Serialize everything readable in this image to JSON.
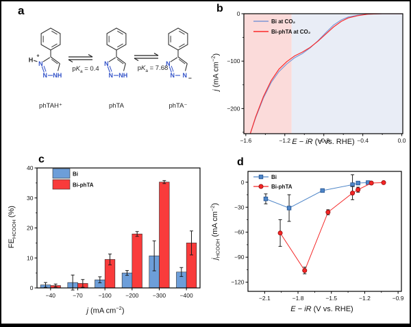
{
  "figure": {
    "background": "#ffffff",
    "border_color": "#000000"
  },
  "panel_a": {
    "label": "a",
    "molecules": [
      {
        "name": "phTAH⁺",
        "h_label": "H",
        "charge": "+",
        "n_left": "N",
        "n_bottom_left": "N",
        "n_bottom_right": "NH"
      },
      {
        "name": "phTA",
        "n_left": "N",
        "n_bottom_left": "N",
        "n_bottom_right": "NH"
      },
      {
        "name": "phTA⁻",
        "charge": "−",
        "n_left": "N",
        "n_bottom_left": "N",
        "n_bottom_right": "N"
      }
    ],
    "equilibria": [
      {
        "pka_parts": [
          {
            "t": "p"
          },
          {
            "t": "K",
            "i": true
          },
          {
            "t": "a",
            "sub": true
          },
          {
            "t": " = 0.4"
          }
        ]
      },
      {
        "pka_parts": [
          {
            "t": "p"
          },
          {
            "t": "K",
            "i": true
          },
          {
            "t": "a",
            "sub": true
          },
          {
            "t": " = 7.68"
          }
        ]
      }
    ],
    "atom_color": "#3050c8"
  },
  "panel_b": {
    "label": "b"
  },
  "panel_c": {
    "label": "c"
  },
  "panel_d": {
    "label": "d"
  },
  "chart_data": [
    {
      "id": "b",
      "type": "line",
      "xlabel": "E − iR (V vs. RHE)",
      "ylabel": "j (mA cm−2)",
      "xlabel_parts": [
        {
          "t": "E",
          "i": true
        },
        {
          "t": " − "
        },
        {
          "t": "iR",
          "i": true
        },
        {
          "t": " (V vs. RHE)"
        }
      ],
      "ylabel_parts": [
        {
          "t": "j",
          "i": true
        },
        {
          "t": " (mA cm"
        },
        {
          "t": "−2",
          "sup": true
        },
        {
          "t": ")"
        }
      ],
      "xlim": [
        -1.62,
        0.01
      ],
      "ylim": [
        -253,
        0
      ],
      "xticks": [
        -1.6,
        -1.2,
        -0.8,
        -0.4,
        0.0
      ],
      "xtick_labels": [
        "−1.6",
        "−1.2",
        "−0.8",
        "−0.4",
        "0.0"
      ],
      "yticks": [
        0,
        -100,
        -200
      ],
      "ytick_labels": [
        "0",
        "−100",
        "−200"
      ],
      "regions": [
        {
          "x0": -1.62,
          "x1": -1.13,
          "color": "#fbdbda"
        },
        {
          "x0": -1.13,
          "x1": 0.01,
          "color": "#e9edf6"
        }
      ],
      "legend_position": "top-left",
      "series": [
        {
          "name": "Bi at CO₂",
          "color": "#7c96d4",
          "x": [
            0.0,
            -0.2,
            -0.35,
            -0.45,
            -0.55,
            -0.62,
            -0.7,
            -0.78,
            -0.86,
            -0.94,
            -1.02,
            -1.1,
            -1.18,
            -1.26,
            -1.34,
            -1.42,
            -1.5,
            -1.56
          ],
          "y": [
            0,
            0,
            -1,
            -3,
            -7,
            -13,
            -24,
            -40,
            -57,
            -72,
            -84,
            -93,
            -106,
            -122,
            -145,
            -178,
            -220,
            -256
          ]
        },
        {
          "name": "Bi-phTA at CO₂",
          "color": "#fb2a2a",
          "x": [
            0.0,
            -0.2,
            -0.35,
            -0.45,
            -0.55,
            -0.62,
            -0.7,
            -0.78,
            -0.86,
            -0.94,
            -1.02,
            -1.1,
            -1.18,
            -1.26,
            -1.34,
            -1.42,
            -1.5,
            -1.56
          ],
          "y": [
            0,
            0,
            -1,
            -4,
            -9,
            -16,
            -28,
            -43,
            -58,
            -71,
            -81,
            -89,
            -101,
            -117,
            -141,
            -175,
            -218,
            -257
          ]
        }
      ]
    },
    {
      "id": "c",
      "type": "bar",
      "xlabel": "j (mA cm−2)",
      "ylabel": "FEHCOOH (%)",
      "xlabel_parts": [
        {
          "t": "j",
          "i": true
        },
        {
          "t": " (mA cm"
        },
        {
          "t": "−2",
          "sup": true
        },
        {
          "t": ")"
        }
      ],
      "ylabel_parts": [
        {
          "t": "FE"
        },
        {
          "t": "HCOOH",
          "sub": true
        },
        {
          "t": " (%)"
        }
      ],
      "categories": [
        "−40",
        "−70",
        "−100",
        "−200",
        "−300",
        "−400"
      ],
      "ylim": [
        0,
        40
      ],
      "yticks": [
        0,
        10,
        20,
        30,
        40
      ],
      "ytick_labels": [
        "0",
        "10",
        "20",
        "30",
        "40"
      ],
      "legend_position": "top-left",
      "series": [
        {
          "name": "Bi",
          "color": "#6d9ed9",
          "edge": "#2b2b2b",
          "values": [
            1.0,
            1.8,
            2.7,
            5.0,
            10.7,
            5.3
          ],
          "errors": [
            0.8,
            2.5,
            1.0,
            0.8,
            5.0,
            1.5
          ]
        },
        {
          "name": "Bi-phTA",
          "color": "#f93b3b",
          "edge": "#2b2b2b",
          "values": [
            0.8,
            1.5,
            9.5,
            18.0,
            35.3,
            15.0
          ],
          "errors": [
            0.5,
            1.3,
            1.8,
            0.8,
            0.5,
            4.0
          ]
        }
      ]
    },
    {
      "id": "d",
      "type": "scatter-line",
      "xlabel": "E − iR (V vs. RHE)",
      "ylabel": "jHCOOH (mA cm−2)",
      "xlabel_parts": [
        {
          "t": "E",
          "i": true
        },
        {
          "t": " − "
        },
        {
          "t": "iR",
          "i": true
        },
        {
          "t": " (V vs. RHE)"
        }
      ],
      "ylabel_parts": [
        {
          "t": "j",
          "i": true
        },
        {
          "t": "HCOOH",
          "sub": true
        },
        {
          "t": " (mA cm"
        },
        {
          "t": "−2",
          "sup": true
        },
        {
          "t": ")"
        }
      ],
      "xlim": [
        -2.25,
        -0.87
      ],
      "ylim": [
        -131,
        13
      ],
      "xticks": [
        -2.1,
        -1.8,
        -1.5,
        -1.2,
        -0.9
      ],
      "xtick_labels": [
        "−2.1",
        "−1.8",
        "−1.5",
        "−1.2",
        "−0.9"
      ],
      "yticks": [
        0,
        -30,
        -60,
        -90,
        -120
      ],
      "ytick_labels": [
        "0",
        "−30",
        "−60",
        "−90",
        "−120"
      ],
      "legend_position": "top-left",
      "series": [
        {
          "name": "Bi",
          "color": "#4f86c8",
          "edge": "#1f4e8c",
          "marker": "square",
          "x": [
            -2.09,
            -1.88,
            -1.58,
            -1.31,
            -1.26,
            -1.17
          ],
          "y": [
            -20,
            -31,
            -10,
            -3,
            -1,
            -0.5
          ],
          "errors": [
            6,
            16,
            2,
            12,
            2,
            1
          ]
        },
        {
          "name": "Bi-phTA",
          "color": "#f42525",
          "edge": "#8f0b0b",
          "marker": "circle",
          "x": [
            -1.96,
            -1.74,
            -1.53,
            -1.31,
            -1.26,
            -1.14,
            -1.03
          ],
          "y": [
            -61,
            -106,
            -36,
            -13,
            -9,
            -1,
            -0.5
          ],
          "errors": [
            16,
            4,
            3,
            8,
            3,
            1,
            1
          ]
        }
      ]
    }
  ]
}
